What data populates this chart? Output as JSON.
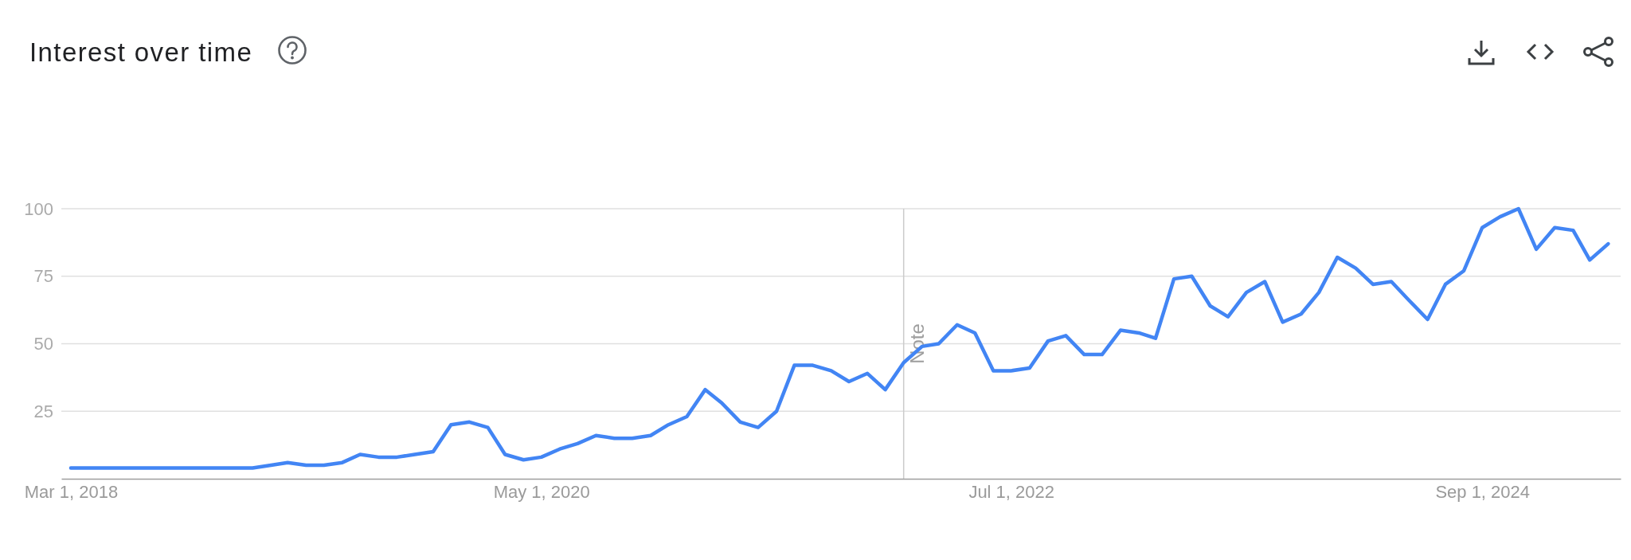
{
  "chart_data": {
    "type": "line",
    "title": "Interest over time",
    "x": [
      "2018-03",
      "2018-04",
      "2018-05",
      "2018-06",
      "2018-07",
      "2018-08",
      "2018-09",
      "2018-10",
      "2018-11",
      "2018-12",
      "2019-01",
      "2019-02",
      "2019-03",
      "2019-04",
      "2019-05",
      "2019-06",
      "2019-07",
      "2019-08",
      "2019-09",
      "2019-10",
      "2019-11",
      "2019-12",
      "2020-01",
      "2020-02",
      "2020-03",
      "2020-04",
      "2020-05",
      "2020-06",
      "2020-07",
      "2020-08",
      "2020-09",
      "2020-10",
      "2020-11",
      "2020-12",
      "2021-01",
      "2021-02",
      "2021-03",
      "2021-04",
      "2021-05",
      "2021-06",
      "2021-07",
      "2021-08",
      "2021-09",
      "2021-10",
      "2021-11",
      "2021-12",
      "2022-01",
      "2022-02",
      "2022-03",
      "2022-04",
      "2022-05",
      "2022-06",
      "2022-07",
      "2022-08",
      "2022-09",
      "2022-10",
      "2022-11",
      "2022-12",
      "2023-01",
      "2023-02",
      "2023-03",
      "2023-04",
      "2023-05",
      "2023-06",
      "2023-07",
      "2023-08",
      "2023-09",
      "2023-10",
      "2023-11",
      "2023-12",
      "2024-01",
      "2024-02",
      "2024-03",
      "2024-04",
      "2024-05",
      "2024-06",
      "2024-07",
      "2024-08",
      "2024-09",
      "2024-10",
      "2024-11",
      "2024-12",
      "2025-01",
      "2025-02",
      "2025-03",
      "2025-04"
    ],
    "series": [
      {
        "color": "#4285f4",
        "values": [
          4,
          4,
          4,
          4,
          4,
          4,
          4,
          4,
          4,
          4,
          4,
          5,
          6,
          5,
          5,
          6,
          9,
          8,
          8,
          9,
          10,
          20,
          21,
          19,
          9,
          7,
          8,
          11,
          13,
          16,
          15,
          15,
          16,
          20,
          23,
          33,
          28,
          21,
          19,
          25,
          42,
          42,
          40,
          36,
          39,
          33,
          43,
          49,
          50,
          57,
          54,
          40,
          40,
          41,
          51,
          53,
          46,
          46,
          55,
          54,
          52,
          74,
          75,
          64,
          60,
          69,
          73,
          58,
          61,
          69,
          82,
          78,
          72,
          73,
          66,
          59,
          72,
          77,
          93,
          97,
          100,
          85,
          93,
          92,
          81,
          87
        ]
      }
    ],
    "xlim": [
      "2018-02-13",
      "2025-04-22"
    ],
    "xticks": [
      {
        "value": "2018-03-01",
        "label": "Mar 1, 2018"
      },
      {
        "value": "2020-05-01",
        "label": "May 1, 2020"
      },
      {
        "value": "2022-07-01",
        "label": "Jul 1, 2022"
      },
      {
        "value": "2024-09-01",
        "label": "Sep 1, 2024"
      }
    ],
    "ylim": [
      0,
      100
    ],
    "yticks": [
      25,
      50,
      75,
      100
    ],
    "grid": "y",
    "ref_lines": [
      {
        "axis": "x",
        "value": "2022-01-01",
        "label": "Note",
        "color": "#cccccc"
      }
    ]
  }
}
